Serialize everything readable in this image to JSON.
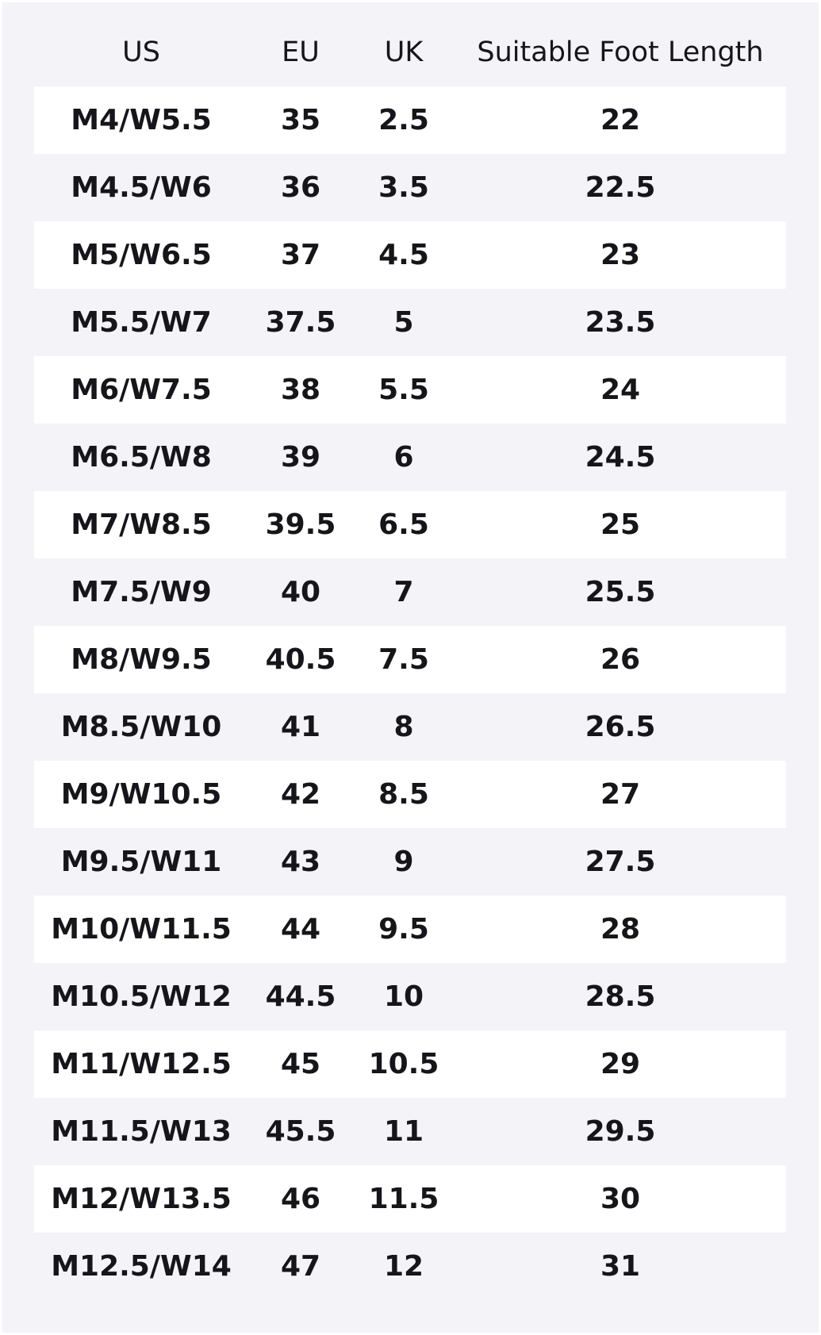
{
  "table": {
    "header": [
      "US",
      "EU",
      "UK",
      "Suitable Foot Length"
    ],
    "rows": [
      [
        "M4/W5.5",
        "35",
        "2.5",
        "22"
      ],
      [
        "M4.5/W6",
        "36",
        "3.5",
        "22.5"
      ],
      [
        "M5/W6.5",
        "37",
        "4.5",
        "23"
      ],
      [
        "M5.5/W7",
        "37.5",
        "5",
        "23.5"
      ],
      [
        "M6/W7.5",
        "38",
        "5.5",
        "24"
      ],
      [
        "M6.5/W8",
        "39",
        "6",
        "24.5"
      ],
      [
        "M7/W8.5",
        "39.5",
        "6.5",
        "25"
      ],
      [
        "M7.5/W9",
        "40",
        "7",
        "25.5"
      ],
      [
        "M8/W9.5",
        "40.5",
        "7.5",
        "26"
      ],
      [
        "M8.5/W10",
        "41",
        "8",
        "26.5"
      ],
      [
        "M9/W10.5",
        "42",
        "8.5",
        "27"
      ],
      [
        "M9.5/W11",
        "43",
        "9",
        "27.5"
      ],
      [
        "M10/W11.5",
        "44",
        "9.5",
        "28"
      ],
      [
        "M10.5/W12",
        "44.5",
        "10",
        "28.5"
      ],
      [
        "M11/W12.5",
        "45",
        "10.5",
        "29"
      ],
      [
        "M11.5/W13",
        "45.5",
        "11",
        "29.5"
      ],
      [
        "M12/W13.5",
        "46",
        "11.5",
        "30"
      ],
      [
        "M12.5/W14",
        "47",
        "12",
        "31"
      ]
    ]
  }
}
